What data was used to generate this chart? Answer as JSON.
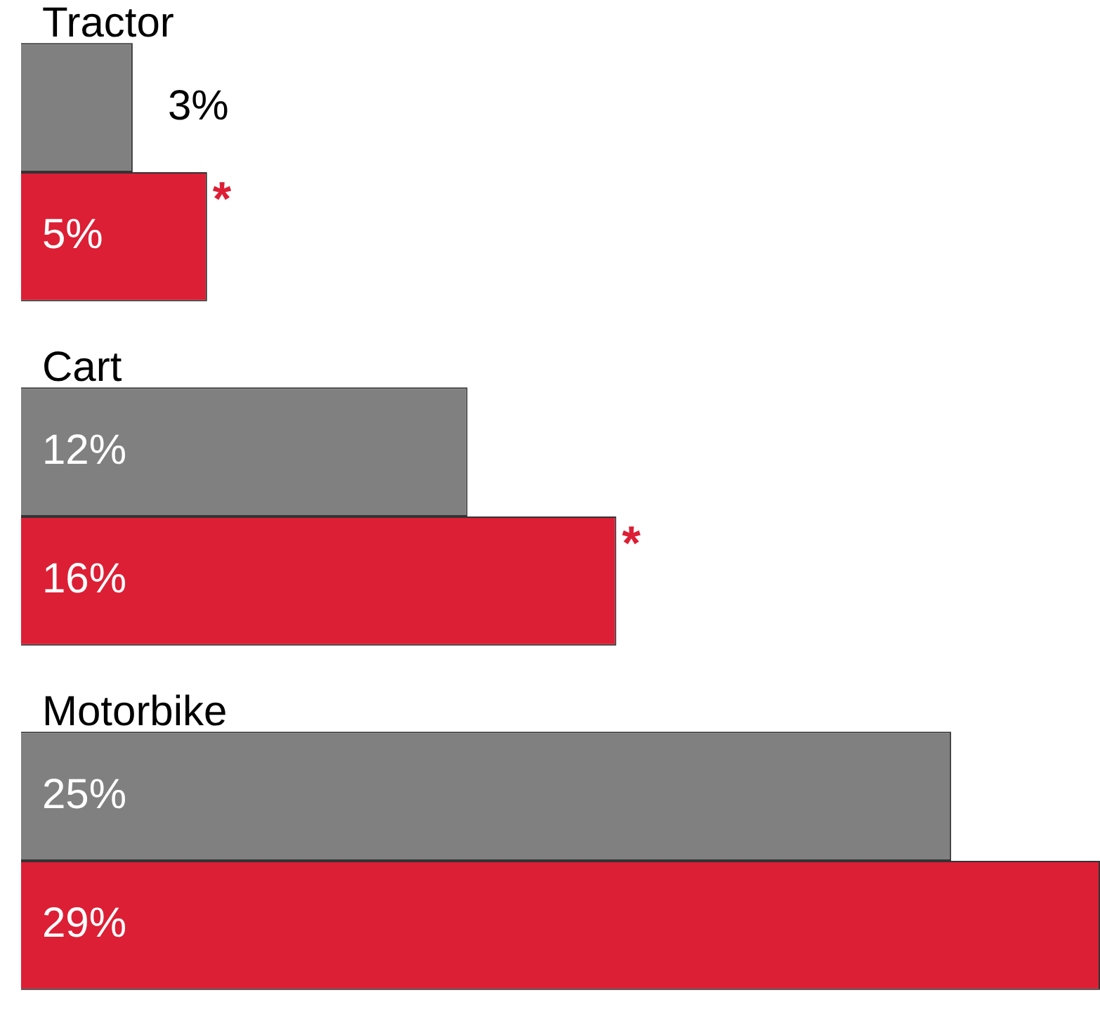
{
  "chart_data": {
    "type": "bar",
    "orientation": "horizontal",
    "categories": [
      "Tractor",
      "Cart",
      "Motorbike"
    ],
    "series": [
      {
        "color": "#808080",
        "values": [
          3,
          12,
          25
        ],
        "value_labels": [
          "3%",
          "12%",
          "25%"
        ]
      },
      {
        "color": "#dc1f35",
        "values": [
          5,
          16,
          29
        ],
        "value_labels": [
          "5%",
          "16%",
          "29%"
        ]
      }
    ],
    "xlim": [
      0,
      29
    ],
    "legend": false,
    "tick_labels": false,
    "annotations": [
      {
        "text": "*",
        "x": 5,
        "y": "Tractor"
      },
      {
        "text": "*",
        "x": 16,
        "y": "Cart"
      }
    ]
  }
}
